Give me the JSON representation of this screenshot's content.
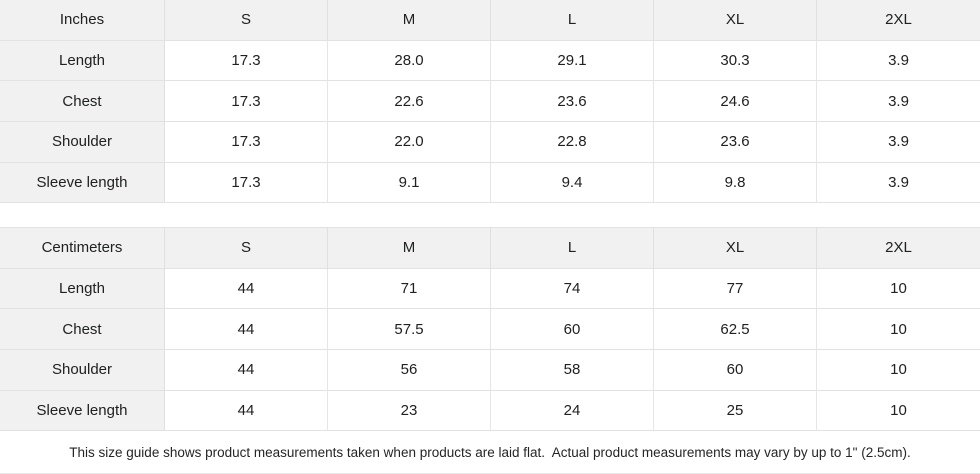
{
  "tables": [
    {
      "id": "inches",
      "header": [
        "Inches",
        "S",
        "M",
        "L",
        "XL",
        "2XL"
      ],
      "rows": [
        {
          "label": "Length",
          "values": [
            "17.3",
            "28.0",
            "29.1",
            "30.3",
            "3.9"
          ]
        },
        {
          "label": "Chest",
          "values": [
            "17.3",
            "22.6",
            "23.6",
            "24.6",
            "3.9"
          ]
        },
        {
          "label": "Shoulder",
          "values": [
            "17.3",
            "22.0",
            "22.8",
            "23.6",
            "3.9"
          ]
        },
        {
          "label": "Sleeve length",
          "values": [
            "17.3",
            "9.1",
            "9.4",
            "9.8",
            "3.9"
          ]
        }
      ]
    },
    {
      "id": "centimeters",
      "header": [
        "Centimeters",
        "S",
        "M",
        "L",
        "XL",
        "2XL"
      ],
      "rows": [
        {
          "label": "Length",
          "values": [
            "44",
            "71",
            "74",
            "77",
            "10"
          ]
        },
        {
          "label": "Chest",
          "values": [
            "44",
            "57.5",
            "60",
            "62.5",
            "10"
          ]
        },
        {
          "label": "Shoulder",
          "values": [
            "44",
            "56",
            "58",
            "60",
            "10"
          ]
        },
        {
          "label": "Sleeve length",
          "values": [
            "44",
            "23",
            "24",
            "25",
            "10"
          ]
        }
      ]
    }
  ],
  "footer": {
    "note": "This size guide shows product measurements taken when products are laid flat.  Actual product measurements may vary by up to 1\" (2.5cm)."
  },
  "colors": {
    "shaded_cell_bg": "#f1f1f1",
    "border": "#e2e2e2",
    "text": "#202122"
  }
}
